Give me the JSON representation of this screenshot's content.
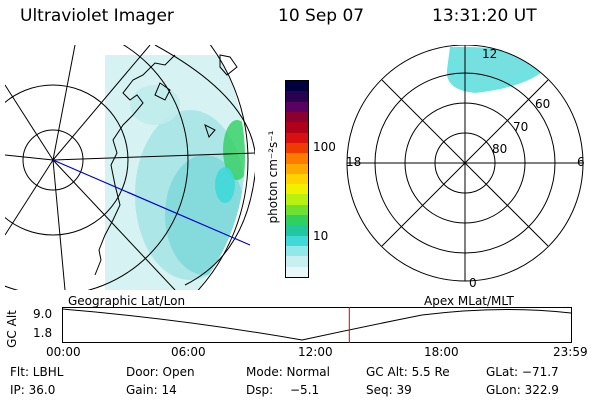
{
  "header": {
    "instrument": "Ultraviolet Imager",
    "date": "10 Sep 07",
    "time": "13:31:20 UT"
  },
  "colorbar": {
    "unit_label": "photon cm⁻²s⁻¹",
    "ticks": [
      "100",
      "10"
    ],
    "colors": [
      "#000040",
      "#2a0050",
      "#5a0060",
      "#8a0030",
      "#b0001a",
      "#d81010",
      "#f03a00",
      "#ff7a00",
      "#ffa800",
      "#ffd200",
      "#f0f000",
      "#b8f010",
      "#70e030",
      "#30d060",
      "#20c8a0",
      "#40d8d8",
      "#90e8e8",
      "#c8f0f0",
      "#e8f8f8"
    ]
  },
  "polar_plot": {
    "mlt_labels": [
      "12",
      "18",
      "6",
      "0"
    ],
    "lat_labels": [
      "60",
      "70",
      "80"
    ]
  },
  "map_labels": {
    "left": "Geographic Lat/Lon",
    "right": "Apex MLat/MLT"
  },
  "altitude_plot": {
    "ylabel": "GC Alt",
    "yticks": [
      "9.0",
      "1.8"
    ],
    "xticks": [
      "00:00",
      "06:00",
      "12:00",
      "18:00",
      "23:59"
    ],
    "current_time_hours": 13.52
  },
  "info": {
    "flt": "Flt: LBHL",
    "door": "Door: Open",
    "mode": "Mode: Normal",
    "gc_alt": "GC Alt: 5.5 Re",
    "glat": "GLat: −71.7",
    "ip": "IP: 36.0",
    "gain": "Gain: 14",
    "dsp_label": "Dsp:",
    "dsp_value": "−5.1",
    "seq": "Seq: 39",
    "glon": "GLon: 322.9"
  },
  "colors": {
    "aurora_cyan": "#40d8d8",
    "aurora_green": "#30d060",
    "faint_teal": "#c8ecec",
    "blue_line": "#0000d0",
    "time_marker": "#d00000"
  }
}
